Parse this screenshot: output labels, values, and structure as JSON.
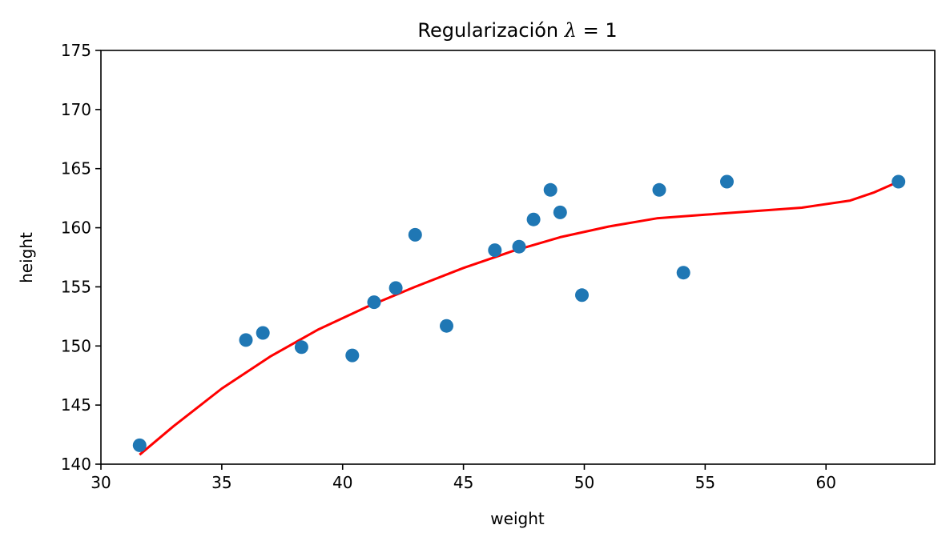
{
  "chart_data": {
    "type": "scatter",
    "title_prefix": "Regularización ",
    "title_symbol": "λ",
    "title_suffix": " = 1",
    "xlabel": "weight",
    "ylabel": "height",
    "xlim": [
      30,
      64.5
    ],
    "ylim": [
      140,
      175
    ],
    "xticks": [
      30,
      35,
      40,
      45,
      50,
      55,
      60
    ],
    "yticks": [
      140,
      145,
      150,
      155,
      160,
      165,
      170,
      175
    ],
    "grid": false,
    "series": [
      {
        "kind": "scatter",
        "color": "#1f77b4",
        "points": [
          [
            31.6,
            141.6
          ],
          [
            36.0,
            150.5
          ],
          [
            36.7,
            151.1
          ],
          [
            38.3,
            149.9
          ],
          [
            40.4,
            149.2
          ],
          [
            41.3,
            153.7
          ],
          [
            42.2,
            154.9
          ],
          [
            43.0,
            159.4
          ],
          [
            44.3,
            151.7
          ],
          [
            46.3,
            158.1
          ],
          [
            47.3,
            158.4
          ],
          [
            47.9,
            160.7
          ],
          [
            48.6,
            163.2
          ],
          [
            49.0,
            161.3
          ],
          [
            49.9,
            154.3
          ],
          [
            53.1,
            163.2
          ],
          [
            54.1,
            156.2
          ],
          [
            55.9,
            163.9
          ],
          [
            63.0,
            163.9
          ]
        ]
      },
      {
        "kind": "line",
        "color": "#ff0000",
        "points": [
          [
            31.6,
            140.8
          ],
          [
            33.0,
            143.2
          ],
          [
            35.0,
            146.4
          ],
          [
            37.0,
            149.1
          ],
          [
            39.0,
            151.4
          ],
          [
            41.0,
            153.3
          ],
          [
            43.0,
            155.0
          ],
          [
            45.0,
            156.6
          ],
          [
            47.0,
            158.0
          ],
          [
            49.0,
            159.2
          ],
          [
            51.0,
            160.1
          ],
          [
            53.0,
            160.8
          ],
          [
            55.0,
            161.1
          ],
          [
            57.0,
            161.4
          ],
          [
            59.0,
            161.7
          ],
          [
            61.0,
            162.3
          ],
          [
            62.0,
            163.0
          ],
          [
            63.0,
            163.9
          ]
        ]
      }
    ]
  }
}
